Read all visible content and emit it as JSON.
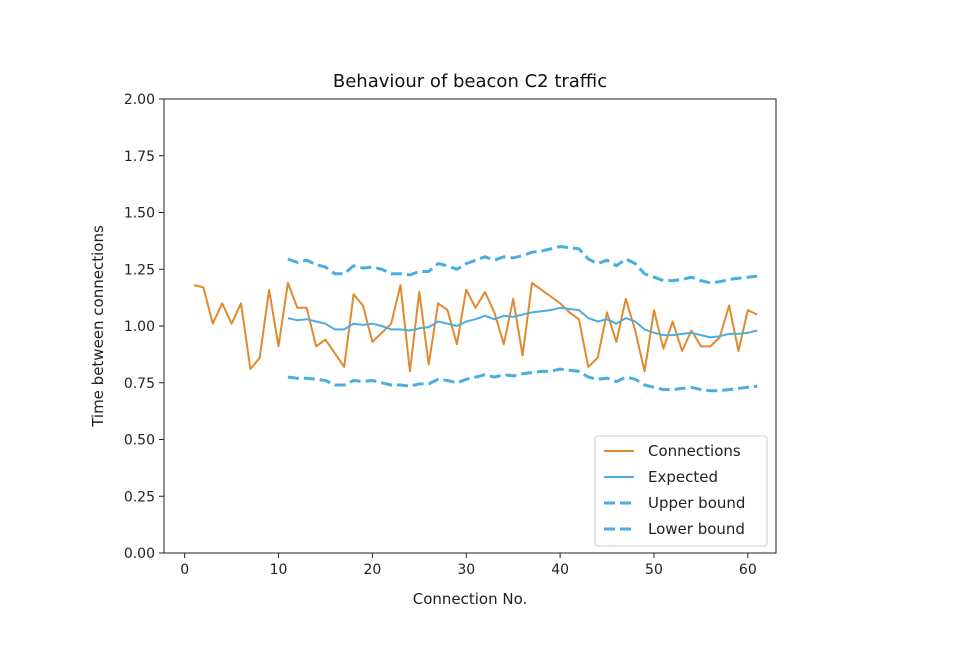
{
  "chart_data": {
    "type": "line",
    "title": "Behaviour of beacon C2 traffic",
    "xlabel": "Connection No.",
    "ylabel": "Time between connections",
    "xlim": [
      -2.2,
      63
    ],
    "ylim": [
      0,
      2
    ],
    "xticks": [
      0,
      10,
      20,
      30,
      40,
      50,
      60
    ],
    "yticks": [
      "0.00",
      "0.25",
      "0.50",
      "0.75",
      "1.00",
      "1.25",
      "1.50",
      "1.75",
      "2.00"
    ],
    "grid": false,
    "legend_position": "bottom-right",
    "series": [
      {
        "name": "Connections",
        "color": "#e08a2e",
        "style": "solid",
        "x": [
          1,
          2,
          3,
          4,
          5,
          6,
          7,
          8,
          9,
          10,
          11,
          12,
          13,
          14,
          15,
          16,
          17,
          18,
          19,
          20,
          21,
          22,
          23,
          24,
          25,
          26,
          27,
          28,
          29,
          30,
          31,
          32,
          33,
          34,
          35,
          36,
          37,
          38,
          39,
          40,
          41,
          42,
          43,
          44,
          45,
          46,
          47,
          48,
          49,
          50,
          51,
          52,
          53,
          54,
          55,
          56,
          57,
          58,
          59,
          60,
          61
        ],
        "y": [
          1.18,
          1.17,
          1.01,
          1.1,
          1.01,
          1.1,
          0.81,
          0.86,
          1.16,
          0.91,
          1.19,
          1.08,
          1.08,
          0.91,
          0.94,
          0.88,
          0.82,
          1.14,
          1.09,
          0.93,
          0.97,
          1.01,
          1.18,
          0.8,
          1.15,
          0.83,
          1.1,
          1.07,
          0.92,
          1.16,
          1.08,
          1.15,
          1.06,
          0.92,
          1.12,
          0.87,
          1.19,
          1.16,
          1.13,
          1.1,
          1.06,
          1.03,
          0.82,
          0.86,
          1.06,
          0.93,
          1.12,
          0.98,
          0.8,
          1.07,
          0.9,
          1.02,
          0.89,
          0.98,
          0.91,
          0.91,
          0.95,
          1.09,
          0.89,
          1.07,
          1.05
        ]
      },
      {
        "name": "Expected",
        "color": "#4baee0",
        "style": "solid",
        "x": [
          11,
          12,
          13,
          14,
          15,
          16,
          17,
          18,
          19,
          20,
          21,
          22,
          23,
          24,
          25,
          26,
          27,
          28,
          29,
          30,
          31,
          32,
          33,
          34,
          35,
          36,
          37,
          38,
          39,
          40,
          41,
          42,
          43,
          44,
          45,
          46,
          47,
          48,
          49,
          50,
          51,
          52,
          53,
          54,
          55,
          56,
          57,
          58,
          59,
          60,
          61
        ],
        "y": [
          1.035,
          1.025,
          1.03,
          1.02,
          1.01,
          0.985,
          0.985,
          1.01,
          1.005,
          1.01,
          1.0,
          0.985,
          0.985,
          0.98,
          0.99,
          0.995,
          1.02,
          1.01,
          1.0,
          1.02,
          1.03,
          1.045,
          1.03,
          1.045,
          1.04,
          1.05,
          1.06,
          1.065,
          1.07,
          1.08,
          1.075,
          1.07,
          1.035,
          1.02,
          1.03,
          1.01,
          1.035,
          1.02,
          0.985,
          0.97,
          0.96,
          0.96,
          0.965,
          0.97,
          0.96,
          0.95,
          0.955,
          0.965,
          0.965,
          0.97,
          0.98
        ]
      },
      {
        "name": "Upper bound",
        "color": "#4baee0",
        "style": "dashed",
        "x": [
          11,
          12,
          13,
          14,
          15,
          16,
          17,
          18,
          19,
          20,
          21,
          22,
          23,
          24,
          25,
          26,
          27,
          28,
          29,
          30,
          31,
          32,
          33,
          34,
          35,
          36,
          37,
          38,
          39,
          40,
          41,
          42,
          43,
          44,
          45,
          46,
          47,
          48,
          49,
          50,
          51,
          52,
          53,
          54,
          55,
          56,
          57,
          58,
          59,
          60,
          61
        ],
        "y": [
          1.295,
          1.28,
          1.29,
          1.27,
          1.26,
          1.23,
          1.23,
          1.265,
          1.255,
          1.26,
          1.25,
          1.23,
          1.23,
          1.225,
          1.24,
          1.24,
          1.275,
          1.265,
          1.25,
          1.275,
          1.29,
          1.305,
          1.29,
          1.305,
          1.3,
          1.31,
          1.325,
          1.33,
          1.34,
          1.35,
          1.345,
          1.34,
          1.295,
          1.275,
          1.29,
          1.265,
          1.295,
          1.275,
          1.23,
          1.215,
          1.2,
          1.2,
          1.205,
          1.215,
          1.2,
          1.19,
          1.195,
          1.205,
          1.21,
          1.215,
          1.22
        ]
      },
      {
        "name": "Lower bound",
        "color": "#4baee0",
        "style": "dashed",
        "x": [
          11,
          12,
          13,
          14,
          15,
          16,
          17,
          18,
          19,
          20,
          21,
          22,
          23,
          24,
          25,
          26,
          27,
          28,
          29,
          30,
          31,
          32,
          33,
          34,
          35,
          36,
          37,
          38,
          39,
          40,
          41,
          42,
          43,
          44,
          45,
          46,
          47,
          48,
          49,
          50,
          51,
          52,
          53,
          54,
          55,
          56,
          57,
          58,
          59,
          60,
          61
        ],
        "y": [
          0.775,
          0.77,
          0.77,
          0.765,
          0.76,
          0.74,
          0.74,
          0.76,
          0.755,
          0.76,
          0.75,
          0.74,
          0.74,
          0.735,
          0.745,
          0.745,
          0.765,
          0.76,
          0.75,
          0.765,
          0.775,
          0.785,
          0.775,
          0.785,
          0.78,
          0.79,
          0.795,
          0.8,
          0.8,
          0.81,
          0.805,
          0.8,
          0.775,
          0.765,
          0.77,
          0.755,
          0.775,
          0.765,
          0.74,
          0.73,
          0.72,
          0.72,
          0.725,
          0.73,
          0.72,
          0.715,
          0.715,
          0.72,
          0.725,
          0.73,
          0.735
        ]
      }
    ]
  }
}
